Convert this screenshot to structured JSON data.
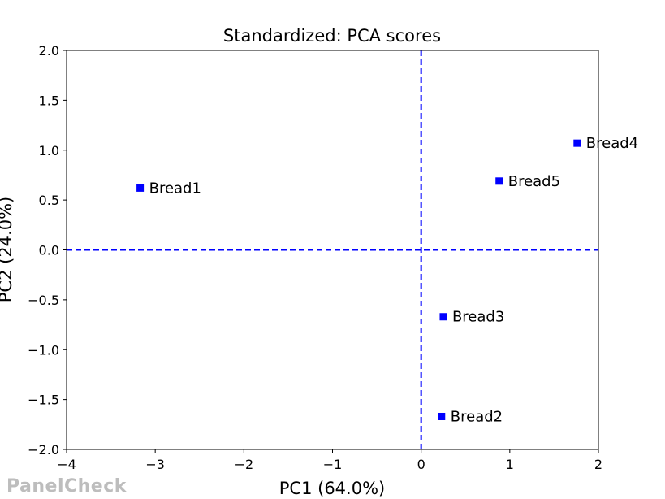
{
  "chart_data": {
    "type": "scatter",
    "title": "Standardized: PCA scores",
    "xlabel": "PC1 (64.0%)",
    "ylabel": "PC2 (24.0%)",
    "xlim": [
      -4,
      2
    ],
    "ylim": [
      -2,
      2
    ],
    "xticks": [
      -4,
      -3,
      -2,
      -1,
      0,
      1,
      2
    ],
    "yticks": [
      -2.0,
      -1.5,
      -1.0,
      -0.5,
      0.0,
      0.5,
      1.0,
      1.5,
      2.0
    ],
    "xtick_labels": [
      "−4",
      "−3",
      "−2",
      "−1",
      "0",
      "1",
      "2"
    ],
    "ytick_labels": [
      "−2.0",
      "−1.5",
      "−1.0",
      "−0.5",
      "0.0",
      "0.5",
      "1.0",
      "1.5",
      "2.0"
    ],
    "grid": false,
    "reference_lines": {
      "x": 0,
      "y": 0,
      "style": "dashed",
      "color": "#0000ff"
    },
    "marker_color": "#0000ff",
    "points": [
      {
        "label": "Bread1",
        "x": -3.17,
        "y": 0.62
      },
      {
        "label": "Bread2",
        "x": 0.23,
        "y": -1.67
      },
      {
        "label": "Bread3",
        "x": 0.25,
        "y": -0.67
      },
      {
        "label": "Bread4",
        "x": 1.76,
        "y": 1.07
      },
      {
        "label": "Bread5",
        "x": 0.88,
        "y": 0.69
      }
    ]
  },
  "watermark": "PanelCheck"
}
